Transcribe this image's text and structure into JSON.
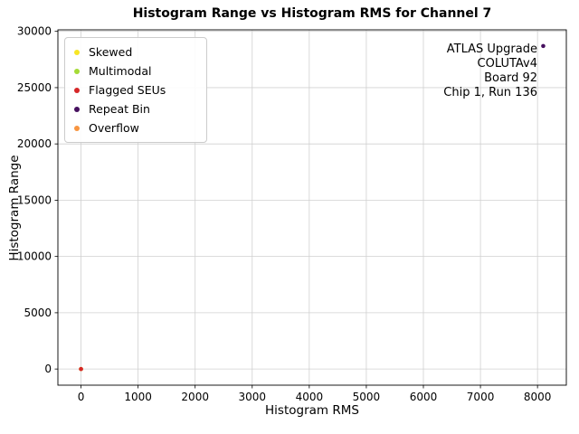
{
  "chart_data": {
    "type": "scatter",
    "title": "Histogram Range vs Histogram RMS for Channel 7",
    "xlabel": "Histogram RMS",
    "ylabel": "Histogram Range",
    "xlim": [
      -405,
      8505
    ],
    "ylim": [
      -1435,
      30135
    ],
    "xticks": [
      0,
      1000,
      2000,
      3000,
      4000,
      5000,
      6000,
      7000,
      8000
    ],
    "yticks": [
      0,
      5000,
      10000,
      15000,
      20000,
      25000,
      30000
    ],
    "grid": true,
    "legend_position": "upper left",
    "series": [
      {
        "name": "Skewed",
        "color": "#f7e625",
        "points": [
          [
            0,
            0
          ]
        ]
      },
      {
        "name": "Multimodal",
        "color": "#a5db36",
        "points": [
          [
            0,
            0
          ]
        ]
      },
      {
        "name": "Flagged SEUs",
        "color": "#d62728",
        "points": [
          [
            0,
            0
          ]
        ]
      },
      {
        "name": "Repeat Bin",
        "color": "#46105e",
        "points": [
          [
            8100,
            28700
          ]
        ]
      },
      {
        "name": "Overflow",
        "color": "#f89540",
        "points": [
          [
            0,
            0
          ]
        ]
      }
    ],
    "annotation": {
      "lines": [
        "ATLAS Upgrade",
        "COLUTAv4",
        "Board 92",
        "Chip 1, Run 136"
      ],
      "align": "right"
    },
    "colors": {
      "grid": "#d0d0d0",
      "spine": "#000000",
      "background": "#ffffff"
    }
  }
}
